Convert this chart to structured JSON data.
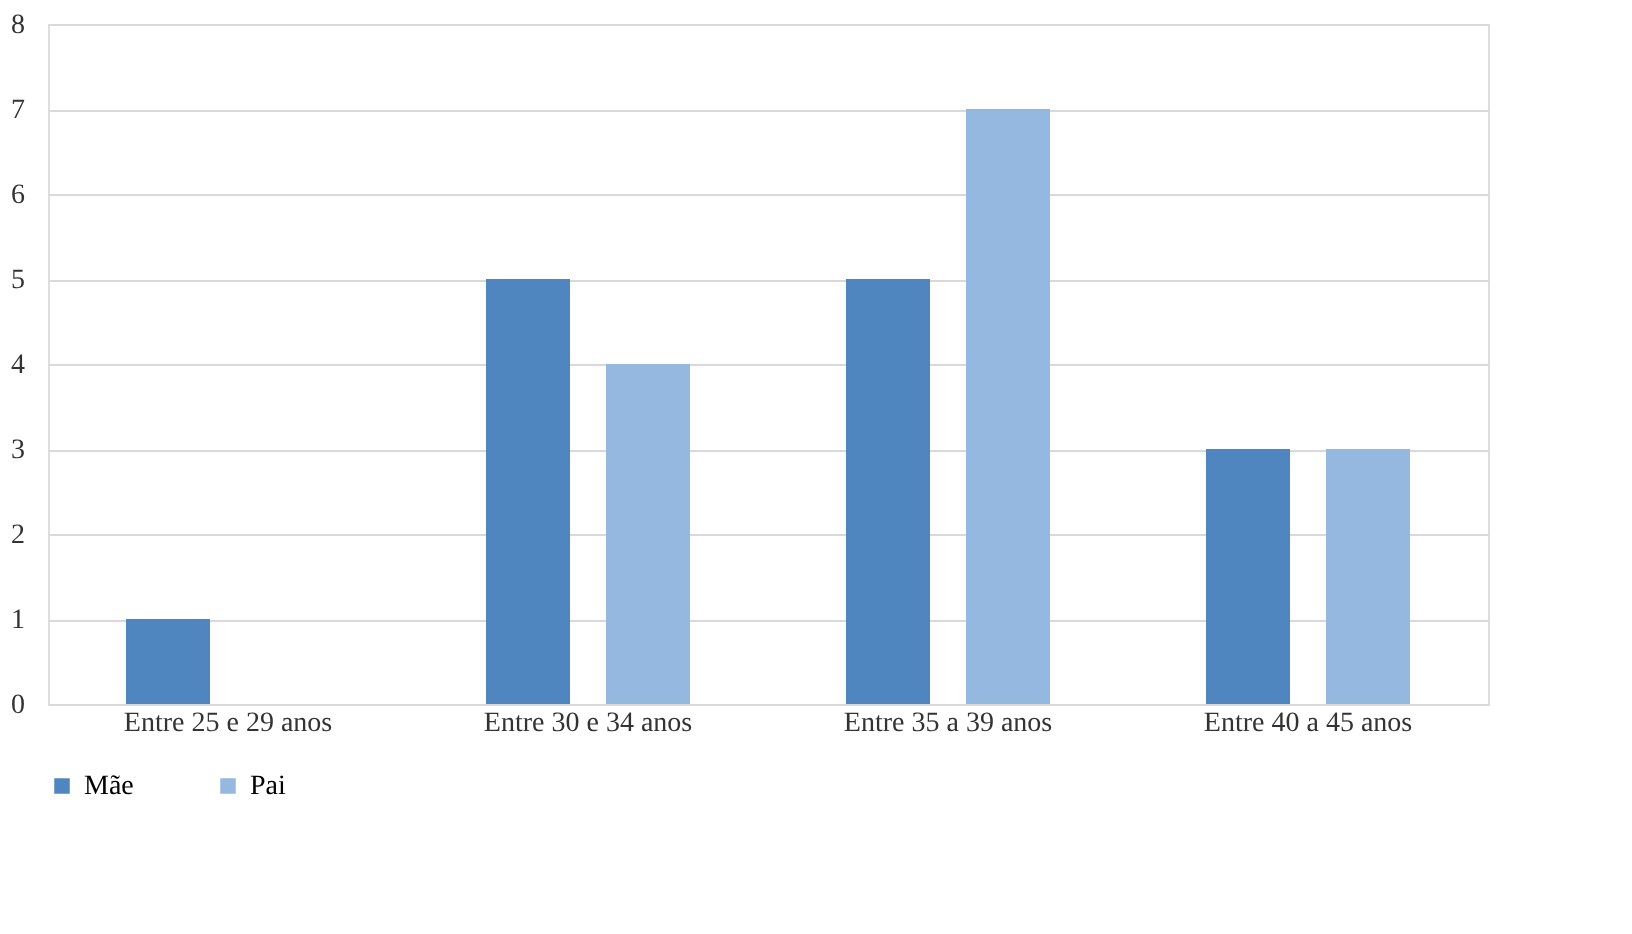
{
  "chart_data": {
    "type": "bar",
    "categories": [
      "Entre 25 e 29 anos",
      "Entre 30 e 34 anos",
      "Entre 35 a 39 anos",
      "Entre 40 a 45 anos"
    ],
    "series": [
      {
        "name": "Mãe",
        "color": "#4f86bf",
        "values": [
          1,
          5,
          5,
          3
        ]
      },
      {
        "name": "Pai",
        "color": "#95b8e0",
        "values": [
          0,
          4,
          7,
          3
        ]
      }
    ],
    "ylim": [
      0,
      8
    ],
    "yticks": [
      0,
      1,
      2,
      3,
      4,
      5,
      6,
      7,
      8
    ],
    "grid": "y",
    "legend": "bottom"
  }
}
